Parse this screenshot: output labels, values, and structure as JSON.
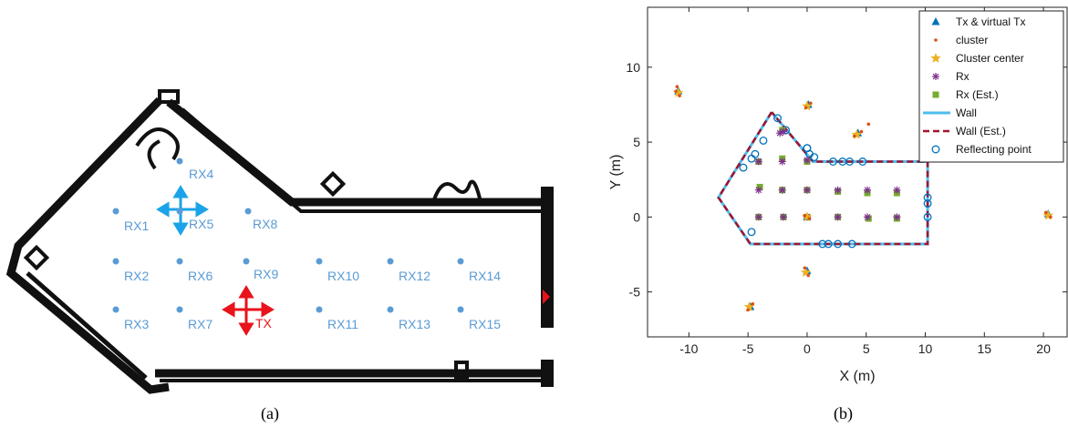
{
  "captions": {
    "a": "(a)",
    "b": "(b)"
  },
  "floorplan": {
    "receivers": [
      {
        "label": "RX1",
        "x": 0,
        "y": 0
      },
      {
        "label": "RX4",
        "x": 0,
        "y": 0
      },
      {
        "label": "RX5",
        "x": 0,
        "y": 0
      },
      {
        "label": "RX8",
        "x": 0,
        "y": 0
      },
      {
        "label": "RX2",
        "x": 0,
        "y": 0
      },
      {
        "label": "RX6",
        "x": 0,
        "y": 0
      },
      {
        "label": "RX9",
        "x": 0,
        "y": 0
      },
      {
        "label": "RX10",
        "x": 0,
        "y": 0
      },
      {
        "label": "RX12",
        "x": 0,
        "y": 0
      },
      {
        "label": "RX14",
        "x": 0,
        "y": 0
      },
      {
        "label": "RX3",
        "x": 0,
        "y": 0
      },
      {
        "label": "RX7",
        "x": 0,
        "y": 0
      },
      {
        "label": "RX11",
        "x": 0,
        "y": 0
      },
      {
        "label": "RX13",
        "x": 0,
        "y": 0
      },
      {
        "label": "RX15",
        "x": 0,
        "y": 0
      }
    ],
    "tx_label": "TX",
    "colors": {
      "rx": "#5b9bd5",
      "tx": "#e8131b",
      "rx_arrow": "#1aa3e8",
      "wall": "#111111"
    }
  },
  "chart_data": {
    "type": "scatter",
    "xlabel": "X (m)",
    "ylabel": "Y (m)",
    "xlim": [
      -13.5,
      22
    ],
    "ylim": [
      -8,
      14
    ],
    "xticks": [
      -10,
      -5,
      0,
      5,
      10,
      15,
      20
    ],
    "yticks": [
      -5,
      0,
      5,
      10
    ],
    "legend_position": "top-right",
    "legend": [
      {
        "label": "Tx & virtual Tx",
        "marker": "triangle",
        "color": "#0072bd"
      },
      {
        "label": "cluster",
        "marker": "dot",
        "color": "#d95319"
      },
      {
        "label": "Cluster center",
        "marker": "star",
        "color": "#edb120"
      },
      {
        "label": "Rx",
        "marker": "asterisk",
        "color": "#7e2f8e"
      },
      {
        "label": "Rx (Est.)",
        "marker": "square",
        "color": "#77ac30"
      },
      {
        "label": "Wall",
        "marker": "line",
        "color": "#4dbeee"
      },
      {
        "label": "Wall (Est.)",
        "marker": "dashed",
        "color": "#a2142f"
      },
      {
        "label": "Reflecting point",
        "marker": "circle",
        "color": "#0072bd"
      }
    ],
    "wall": [
      [
        -3,
        7
      ],
      [
        -7.5,
        1.3
      ],
      [
        -4.8,
        -1.8
      ],
      [
        10.2,
        -1.8
      ],
      [
        10.2,
        3.7
      ],
      [
        0.5,
        3.7
      ],
      [
        -3,
        7
      ]
    ],
    "tx_virtual": [
      [
        0,
        0
      ],
      [
        -10.9,
        8.4
      ],
      [
        0.1,
        7.5
      ],
      [
        4.3,
        5.6
      ],
      [
        -4.8,
        -6
      ],
      [
        0,
        -3.6
      ],
      [
        20.4,
        0.2
      ]
    ],
    "cluster_centers": [
      [
        0,
        0
      ],
      [
        -10.9,
        8.3
      ],
      [
        0,
        7.4
      ],
      [
        4.2,
        5.5
      ],
      [
        -4.9,
        -6
      ],
      [
        -0.1,
        -3.7
      ],
      [
        20.4,
        0.1
      ]
    ],
    "cluster_points": [
      [
        0.2,
        -0.1
      ],
      [
        -0.2,
        0.1
      ],
      [
        -11,
        8.7
      ],
      [
        -10.8,
        8.1
      ],
      [
        -11.1,
        8.4
      ],
      [
        0.3,
        7.6
      ],
      [
        -0.1,
        7.3
      ],
      [
        4.6,
        5.7
      ],
      [
        5.2,
        6.2
      ],
      [
        4,
        5.4
      ],
      [
        -5,
        -6.2
      ],
      [
        -4.6,
        -5.8
      ],
      [
        0.1,
        -3.9
      ],
      [
        -0.2,
        -3.4
      ],
      [
        20.6,
        0
      ],
      [
        20.2,
        0.3
      ]
    ],
    "rx": [
      [
        -4.1,
        1.8
      ],
      [
        -2.1,
        3.7
      ],
      [
        -2.1,
        1.8
      ],
      [
        -2,
        0
      ],
      [
        -4.1,
        0
      ],
      [
        0,
        1.8
      ],
      [
        0,
        0
      ],
      [
        2.6,
        1.8
      ],
      [
        5.1,
        1.8
      ],
      [
        7.6,
        1.8
      ],
      [
        -4.1,
        3.7
      ],
      [
        0,
        3.8
      ],
      [
        2.6,
        0
      ],
      [
        5.1,
        0
      ],
      [
        7.6,
        0
      ],
      [
        -2.3,
        5.6
      ],
      [
        -2,
        5.7
      ]
    ],
    "rx_est": [
      [
        -4.1,
        3.7
      ],
      [
        -4,
        2
      ],
      [
        -2.1,
        3.9
      ],
      [
        -2.1,
        1.8
      ],
      [
        -2,
        0
      ],
      [
        -4.1,
        0
      ],
      [
        0,
        1.8
      ],
      [
        0,
        0
      ],
      [
        2.6,
        1.7
      ],
      [
        5.1,
        1.6
      ],
      [
        7.6,
        1.6
      ],
      [
        0,
        3.7
      ],
      [
        2.6,
        0
      ],
      [
        5.2,
        -0.1
      ],
      [
        7.6,
        -0.1
      ],
      [
        -2.1,
        5.8
      ]
    ],
    "reflecting_points": [
      [
        -2.5,
        6.6
      ],
      [
        -1.8,
        5.8
      ],
      [
        -3.7,
        5.1
      ],
      [
        -4.4,
        4.2
      ],
      [
        -4.7,
        3.9
      ],
      [
        -5.4,
        3.3
      ],
      [
        0,
        4.6
      ],
      [
        0.2,
        4.2
      ],
      [
        0.6,
        4
      ],
      [
        2.2,
        3.7
      ],
      [
        3,
        3.7
      ],
      [
        3.6,
        3.7
      ],
      [
        4.7,
        3.7
      ],
      [
        10.2,
        1.3
      ],
      [
        10.2,
        0.9
      ],
      [
        10.2,
        0
      ],
      [
        -4.7,
        -1
      ],
      [
        1.8,
        -1.8
      ],
      [
        2.6,
        -1.8
      ],
      [
        3.8,
        -1.8
      ],
      [
        1.3,
        -1.8
      ],
      [
        0,
        4.6
      ]
    ]
  }
}
